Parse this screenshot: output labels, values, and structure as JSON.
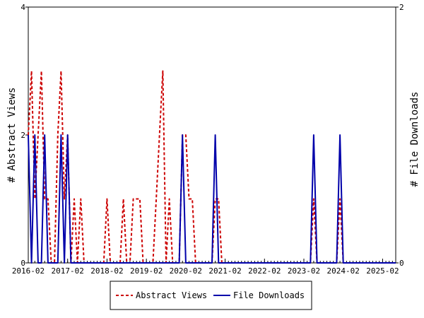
{
  "chart_data": {
    "type": "line",
    "title": "",
    "x_start": "2016-02",
    "x_end": "2025-06",
    "x_tick_labels": [
      "2016-02",
      "2017-02",
      "2018-02",
      "2019-02",
      "2020-02",
      "2021-02",
      "2022-02",
      "2023-02",
      "2024-02",
      "2025-02"
    ],
    "y_left": {
      "label": "# Abstract Views",
      "range": [
        0,
        4
      ],
      "ticks": [
        "0",
        "2",
        "4"
      ]
    },
    "y_right": {
      "label": "# File Downloads",
      "range": [
        0,
        2
      ],
      "ticks": [
        "0",
        "2"
      ]
    },
    "legend": {
      "position": "bottom-center"
    },
    "grid": false,
    "series": [
      {
        "name": "Abstract Views",
        "color": "#cc0000",
        "style": "dashed",
        "axis": "left",
        "points": [
          [
            "2016-02",
            2
          ],
          [
            "2016-03",
            3
          ],
          [
            "2016-04",
            1
          ],
          [
            "2016-05",
            2
          ],
          [
            "2016-06",
            3
          ],
          [
            "2016-07",
            1
          ],
          [
            "2016-08",
            1
          ],
          [
            "2016-09",
            0
          ],
          [
            "2016-10",
            0
          ],
          [
            "2016-11",
            2
          ],
          [
            "2016-12",
            3
          ],
          [
            "2017-01",
            1
          ],
          [
            "2017-02",
            2
          ],
          [
            "2017-03",
            0
          ],
          [
            "2017-04",
            1
          ],
          [
            "2017-05",
            0
          ],
          [
            "2017-06",
            1
          ],
          [
            "2017-07",
            0
          ],
          [
            "2017-08",
            0
          ],
          [
            "2017-09",
            0
          ],
          [
            "2017-10",
            0
          ],
          [
            "2017-11",
            0
          ],
          [
            "2017-12",
            0
          ],
          [
            "2018-01",
            0
          ],
          [
            "2018-02",
            1
          ],
          [
            "2018-03",
            0
          ],
          [
            "2018-04",
            0
          ],
          [
            "2018-05",
            0
          ],
          [
            "2018-06",
            0
          ],
          [
            "2018-07",
            1
          ],
          [
            "2018-08",
            0
          ],
          [
            "2018-09",
            0
          ],
          [
            "2018-10",
            1
          ],
          [
            "2018-11",
            1
          ],
          [
            "2018-12",
            1
          ],
          [
            "2019-01",
            0
          ],
          [
            "2019-02",
            0
          ],
          [
            "2019-03",
            0
          ],
          [
            "2019-04",
            0
          ],
          [
            "2019-05",
            1
          ],
          [
            "2019-06",
            2
          ],
          [
            "2019-07",
            3
          ],
          [
            "2019-08",
            0
          ],
          [
            "2019-09",
            1
          ],
          [
            "2019-10",
            0
          ],
          [
            "2019-11",
            0
          ],
          [
            "2019-12",
            0
          ],
          [
            "2020-01",
            2
          ],
          [
            "2020-02",
            2
          ],
          [
            "2020-03",
            1
          ],
          [
            "2020-04",
            1
          ],
          [
            "2020-05",
            0
          ],
          [
            "2020-06",
            0
          ],
          [
            "2020-07",
            0
          ],
          [
            "2020-08",
            0
          ],
          [
            "2020-09",
            0
          ],
          [
            "2020-10",
            0
          ],
          [
            "2020-11",
            1
          ],
          [
            "2020-12",
            1
          ],
          [
            "2021-01",
            0
          ],
          [
            "2021-02",
            0
          ],
          [
            "2021-03",
            0
          ],
          [
            "2021-04",
            0
          ],
          [
            "2021-05",
            0
          ],
          [
            "2021-06",
            0
          ],
          [
            "2021-07",
            0
          ],
          [
            "2021-08",
            0
          ],
          [
            "2021-09",
            0
          ],
          [
            "2021-10",
            0
          ],
          [
            "2021-11",
            0
          ],
          [
            "2021-12",
            0
          ],
          [
            "2022-01",
            0
          ],
          [
            "2022-02",
            0
          ],
          [
            "2022-03",
            0
          ],
          [
            "2022-04",
            0
          ],
          [
            "2022-05",
            0
          ],
          [
            "2022-06",
            0
          ],
          [
            "2022-07",
            0
          ],
          [
            "2022-08",
            0
          ],
          [
            "2022-09",
            0
          ],
          [
            "2022-10",
            0
          ],
          [
            "2022-11",
            0
          ],
          [
            "2022-12",
            0
          ],
          [
            "2023-01",
            0
          ],
          [
            "2023-02",
            0
          ],
          [
            "2023-03",
            0
          ],
          [
            "2023-04",
            0
          ],
          [
            "2023-05",
            1
          ],
          [
            "2023-06",
            0
          ],
          [
            "2023-07",
            0
          ],
          [
            "2023-08",
            0
          ],
          [
            "2023-09",
            0
          ],
          [
            "2023-10",
            0
          ],
          [
            "2023-11",
            0
          ],
          [
            "2023-12",
            0
          ],
          [
            "2024-01",
            1
          ],
          [
            "2024-02",
            0
          ],
          [
            "2024-03",
            0
          ],
          [
            "2024-04",
            0
          ],
          [
            "2024-05",
            0
          ],
          [
            "2024-06",
            0
          ],
          [
            "2024-07",
            0
          ],
          [
            "2024-08",
            0
          ],
          [
            "2024-09",
            0
          ],
          [
            "2024-10",
            0
          ],
          [
            "2024-11",
            0
          ],
          [
            "2024-12",
            0
          ],
          [
            "2025-01",
            0
          ],
          [
            "2025-02",
            0
          ],
          [
            "2025-03",
            0
          ],
          [
            "2025-04",
            0
          ],
          [
            "2025-05",
            0
          ],
          [
            "2025-06",
            0
          ]
        ]
      },
      {
        "name": "File Downloads",
        "color": "#0000aa",
        "style": "solid",
        "axis": "right",
        "points": [
          [
            "2016-02",
            1
          ],
          [
            "2016-03",
            0
          ],
          [
            "2016-04",
            1
          ],
          [
            "2016-05",
            0
          ],
          [
            "2016-06",
            0
          ],
          [
            "2016-07",
            1
          ],
          [
            "2016-08",
            0
          ],
          [
            "2016-09",
            0
          ],
          [
            "2016-10",
            0
          ],
          [
            "2016-11",
            0
          ],
          [
            "2016-12",
            1
          ],
          [
            "2017-01",
            0
          ],
          [
            "2017-02",
            1
          ],
          [
            "2017-03",
            0
          ],
          [
            "2017-04",
            0
          ],
          [
            "2017-05",
            0
          ],
          [
            "2017-06",
            0
          ],
          [
            "2017-07",
            0
          ],
          [
            "2017-08",
            0
          ],
          [
            "2017-09",
            0
          ],
          [
            "2017-10",
            0
          ],
          [
            "2017-11",
            0
          ],
          [
            "2017-12",
            0
          ],
          [
            "2018-01",
            0
          ],
          [
            "2018-02",
            0
          ],
          [
            "2018-03",
            0
          ],
          [
            "2018-04",
            0
          ],
          [
            "2018-05",
            0
          ],
          [
            "2018-06",
            0
          ],
          [
            "2018-07",
            0
          ],
          [
            "2018-08",
            0
          ],
          [
            "2018-09",
            0
          ],
          [
            "2018-10",
            0
          ],
          [
            "2018-11",
            0
          ],
          [
            "2018-12",
            0
          ],
          [
            "2019-01",
            0
          ],
          [
            "2019-02",
            0
          ],
          [
            "2019-03",
            0
          ],
          [
            "2019-04",
            0
          ],
          [
            "2019-05",
            0
          ],
          [
            "2019-06",
            0
          ],
          [
            "2019-07",
            0
          ],
          [
            "2019-08",
            0
          ],
          [
            "2019-09",
            0
          ],
          [
            "2019-10",
            0
          ],
          [
            "2019-11",
            0
          ],
          [
            "2019-12",
            0
          ],
          [
            "2020-01",
            1
          ],
          [
            "2020-02",
            0
          ],
          [
            "2020-03",
            0
          ],
          [
            "2020-04",
            0
          ],
          [
            "2020-05",
            0
          ],
          [
            "2020-06",
            0
          ],
          [
            "2020-07",
            0
          ],
          [
            "2020-08",
            0
          ],
          [
            "2020-09",
            0
          ],
          [
            "2020-10",
            0
          ],
          [
            "2020-11",
            1
          ],
          [
            "2020-12",
            0
          ],
          [
            "2021-01",
            0
          ],
          [
            "2021-02",
            0
          ],
          [
            "2021-03",
            0
          ],
          [
            "2021-04",
            0
          ],
          [
            "2021-05",
            0
          ],
          [
            "2021-06",
            0
          ],
          [
            "2021-07",
            0
          ],
          [
            "2021-08",
            0
          ],
          [
            "2021-09",
            0
          ],
          [
            "2021-10",
            0
          ],
          [
            "2021-11",
            0
          ],
          [
            "2021-12",
            0
          ],
          [
            "2022-01",
            0
          ],
          [
            "2022-02",
            0
          ],
          [
            "2022-03",
            0
          ],
          [
            "2022-04",
            0
          ],
          [
            "2022-05",
            0
          ],
          [
            "2022-06",
            0
          ],
          [
            "2022-07",
            0
          ],
          [
            "2022-08",
            0
          ],
          [
            "2022-09",
            0
          ],
          [
            "2022-10",
            0
          ],
          [
            "2022-11",
            0
          ],
          [
            "2022-12",
            0
          ],
          [
            "2023-01",
            0
          ],
          [
            "2023-02",
            0
          ],
          [
            "2023-03",
            0
          ],
          [
            "2023-04",
            0
          ],
          [
            "2023-05",
            1
          ],
          [
            "2023-06",
            0
          ],
          [
            "2023-07",
            0
          ],
          [
            "2023-08",
            0
          ],
          [
            "2023-09",
            0
          ],
          [
            "2023-10",
            0
          ],
          [
            "2023-11",
            0
          ],
          [
            "2023-12",
            0
          ],
          [
            "2024-01",
            1
          ],
          [
            "2024-02",
            0
          ],
          [
            "2024-03",
            0
          ],
          [
            "2024-04",
            0
          ],
          [
            "2024-05",
            0
          ],
          [
            "2024-06",
            0
          ],
          [
            "2024-07",
            0
          ],
          [
            "2024-08",
            0
          ],
          [
            "2024-09",
            0
          ],
          [
            "2024-10",
            0
          ],
          [
            "2024-11",
            0
          ],
          [
            "2024-12",
            0
          ],
          [
            "2025-01",
            0
          ],
          [
            "2025-02",
            0
          ],
          [
            "2025-03",
            0
          ],
          [
            "2025-04",
            0
          ],
          [
            "2025-05",
            0
          ],
          [
            "2025-06",
            0
          ]
        ]
      }
    ]
  }
}
